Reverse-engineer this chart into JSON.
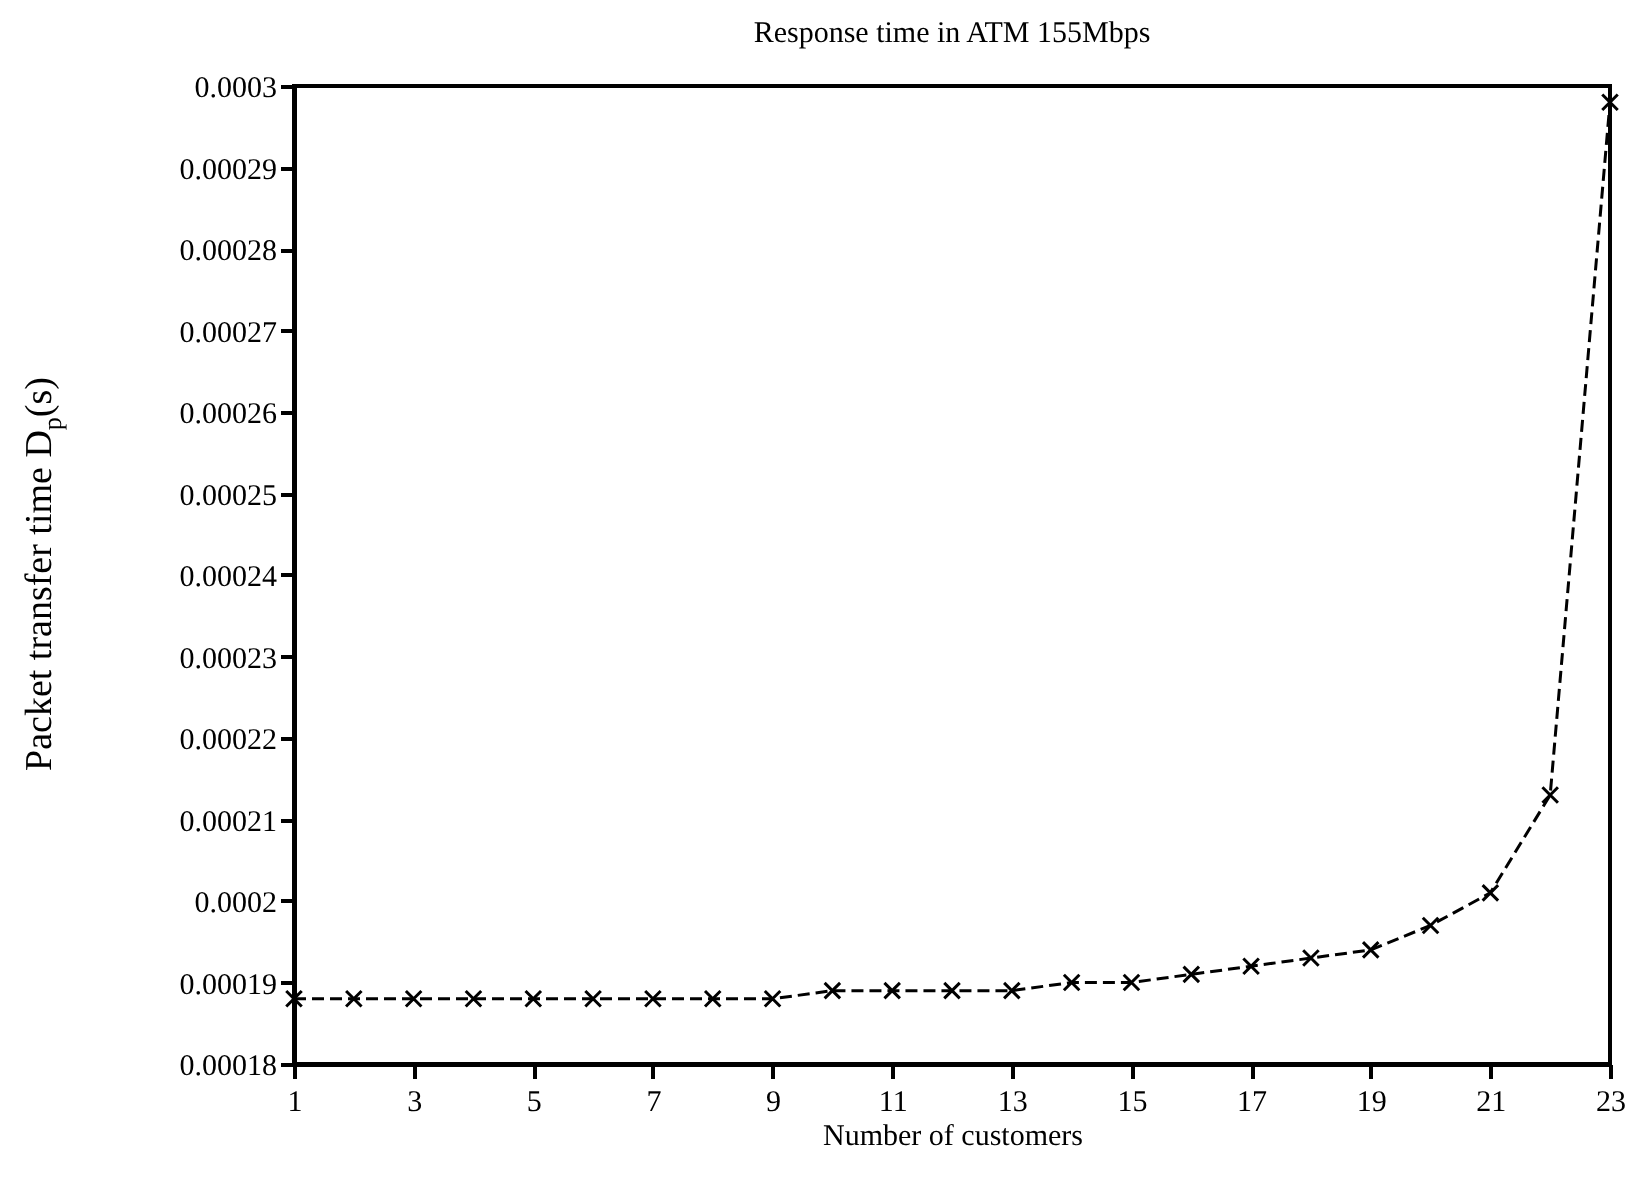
{
  "chart_data": {
    "type": "line",
    "title": "Response time in ATM 155Mbps",
    "xlabel": "Number of customers",
    "ylabel": "Packet transfer time D$_{p}$(s)",
    "x": [
      1,
      2,
      3,
      4,
      5,
      6,
      7,
      8,
      9,
      10,
      11,
      12,
      13,
      14,
      15,
      16,
      17,
      18,
      19,
      20,
      21,
      22,
      23
    ],
    "series": [
      {
        "color": "#000000",
        "values": [
          0.000188,
          0.000188,
          0.000188,
          0.000188,
          0.000188,
          0.000188,
          0.000188,
          0.000188,
          0.000188,
          0.000189,
          0.000189,
          0.000189,
          0.000189,
          0.00019,
          0.00019,
          0.000191,
          0.000192,
          0.000193,
          0.000194,
          0.000197,
          0.000201,
          0.000213,
          0.000298
        ]
      }
    ],
    "xlim": [
      1,
      23
    ],
    "xticks": [
      1,
      3,
      5,
      7,
      9,
      11,
      13,
      15,
      17,
      19,
      21,
      23
    ],
    "ylim": [
      0.00018,
      0.0003
    ],
    "yticks": [
      0.00018,
      0.00019,
      0.0002,
      0.00021,
      0.00022,
      0.00023,
      0.00024,
      0.00025,
      0.00026,
      0.00027,
      0.00028,
      0.00029,
      0.0003
    ],
    "grid": false,
    "marker": "cross",
    "line_style": "dashed"
  }
}
